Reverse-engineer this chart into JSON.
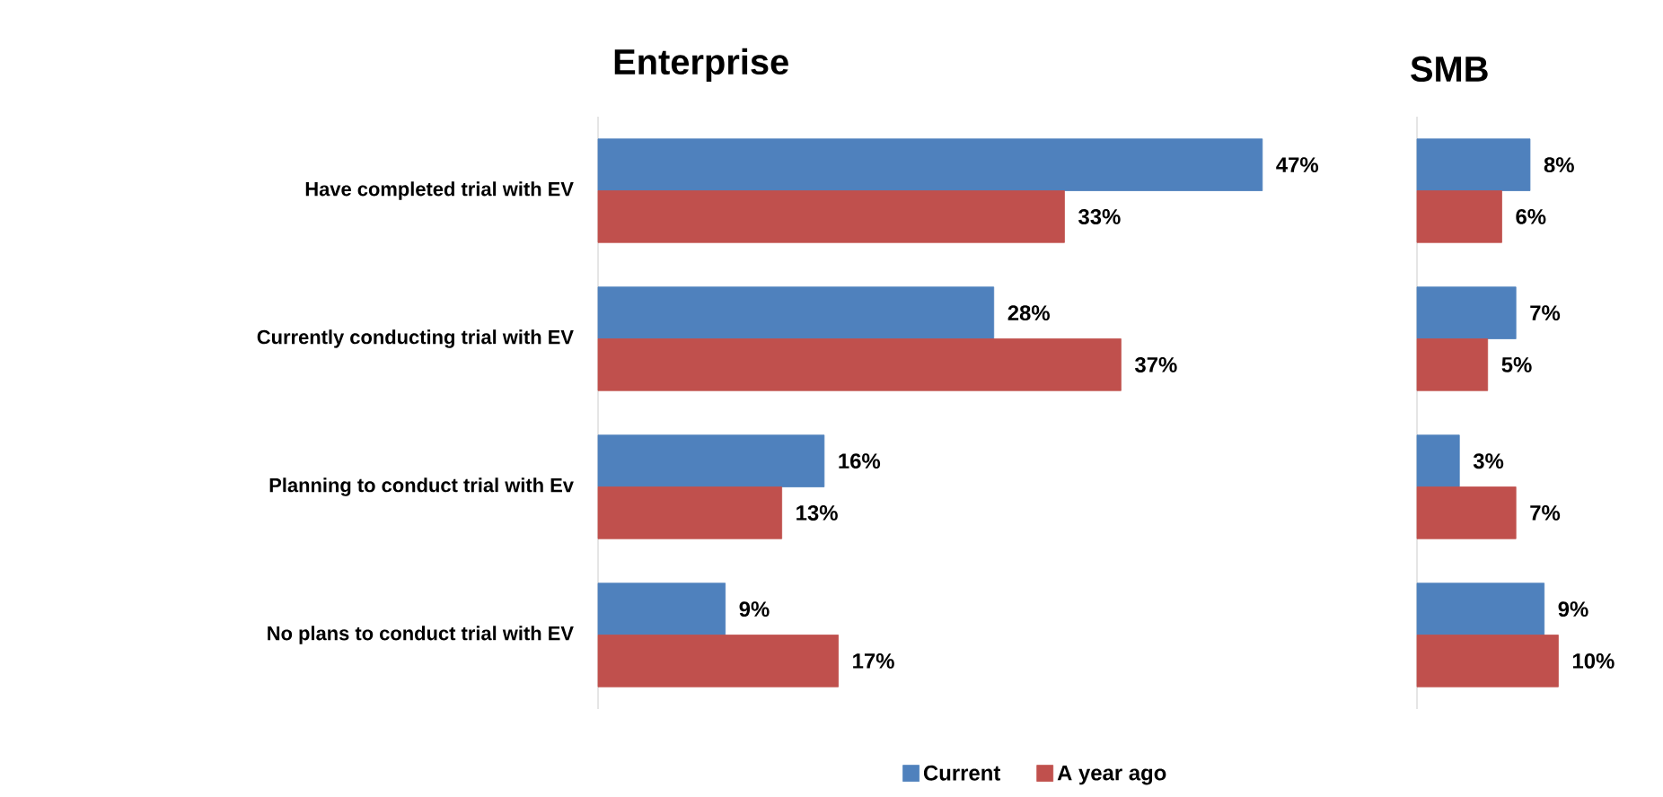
{
  "chart_data": [
    {
      "type": "bar",
      "orientation": "horizontal",
      "title": "Enterprise",
      "categories": [
        "Have completed trial with EV",
        "Currently conducting trial with EV",
        "Planning to conduct trial with Ev",
        "No plans to conduct trial with EV"
      ],
      "tick_labels": "y",
      "legend": "bottom",
      "series": [
        {
          "name": "Current",
          "color": "#4f81bd",
          "values": [
            47,
            28,
            16,
            9
          ],
          "value_labels": [
            "47%",
            "28%",
            "16%",
            "9%"
          ]
        },
        {
          "name": "A year ago",
          "color": "#c0504d",
          "values": [
            33,
            37,
            13,
            17
          ],
          "value_labels": [
            "33%",
            "37%",
            "13%",
            "17%"
          ]
        }
      ]
    },
    {
      "type": "bar",
      "orientation": "horizontal",
      "title": "SMB",
      "categories": [
        null,
        null,
        null,
        null
      ],
      "tick_labels": false,
      "series": [
        {
          "color": "#4f81bd",
          "values": [
            8,
            7,
            3,
            9
          ],
          "value_labels": [
            "8%",
            "7%",
            "3%",
            "9%"
          ]
        },
        {
          "color": "#c0504d",
          "values": [
            6,
            5,
            7,
            10
          ],
          "value_labels": [
            "6%",
            "5%",
            "7%",
            "10%"
          ]
        }
      ]
    }
  ]
}
